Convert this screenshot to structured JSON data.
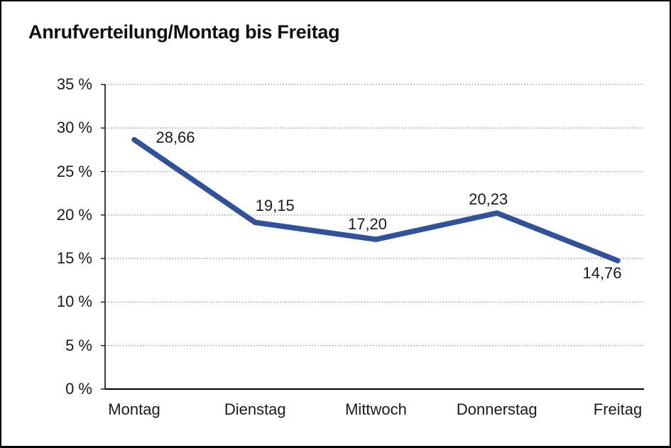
{
  "window": {
    "background_color": "#ffffff",
    "border_color": "#000000"
  },
  "chart_data": {
    "type": "line",
    "title": "Anrufverteilung/Montag bis Freitag",
    "categories": [
      "Montag",
      "Dienstag",
      "Mittwoch",
      "Donnerstag",
      "Freitag"
    ],
    "series": [
      {
        "name": "Anrufverteilung",
        "values": [
          28.66,
          19.15,
          17.2,
          20.23,
          14.76
        ]
      }
    ],
    "point_labels": [
      "28,66",
      "19,15",
      "17,20",
      "20,23",
      "14,76"
    ],
    "y_tick_labels": [
      "0 %",
      "5 %",
      "10 %",
      "15 %",
      "20 %",
      "25 %",
      "30 %",
      "35 %"
    ],
    "y_tick_values": [
      0,
      5,
      10,
      15,
      20,
      25,
      30,
      35
    ],
    "ylim": [
      0,
      35
    ],
    "xlabel": "",
    "ylabel": "",
    "legend": "none",
    "grid": "horizontal-dotted",
    "line_color": "#30519c",
    "axis_color": "#000000",
    "grid_color": "#8c8c8c",
    "text_color": "#1a1a1a"
  }
}
